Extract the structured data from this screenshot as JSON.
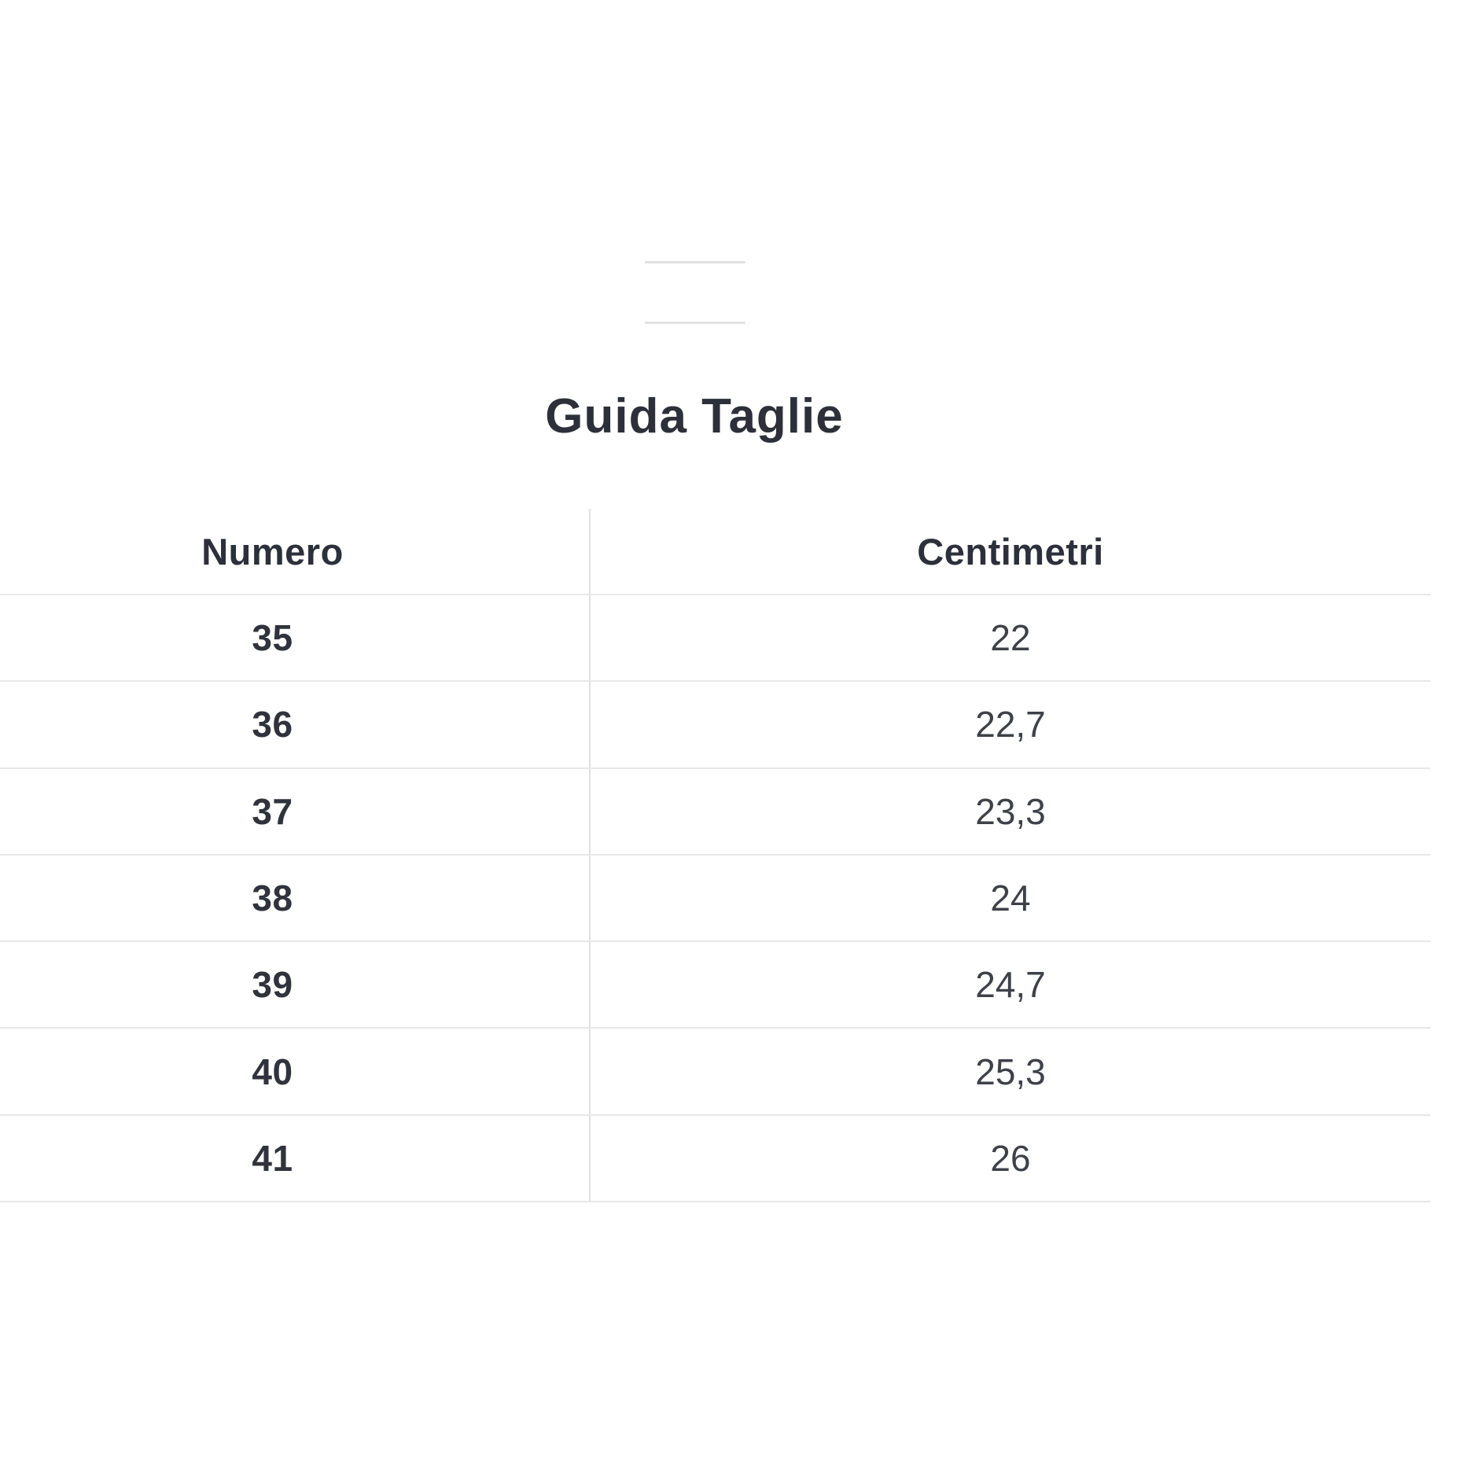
{
  "title": "Guida Taglie",
  "decor": {
    "top_line_count": 2
  },
  "table": {
    "headers": [
      {
        "label": "Numero"
      },
      {
        "label": "Centimetri"
      }
    ],
    "rows": [
      {
        "numero": "35",
        "centimetri": "22"
      },
      {
        "numero": "36",
        "centimetri": "22,7"
      },
      {
        "numero": "37",
        "centimetri": "23,3"
      },
      {
        "numero": "38",
        "centimetri": "24"
      },
      {
        "numero": "39",
        "centimetri": "24,7"
      },
      {
        "numero": "40",
        "centimetri": "25,3"
      },
      {
        "numero": "41",
        "centimetri": "26"
      }
    ]
  },
  "colors": {
    "background": "#ffffff",
    "heading_text": "#2d3039",
    "number_text": "#30333c",
    "cm_text": "#3e4147",
    "grid_line": "#e8e8e8",
    "column_divider": "#e0e0e0",
    "decor_line": "#e2e2e2"
  }
}
